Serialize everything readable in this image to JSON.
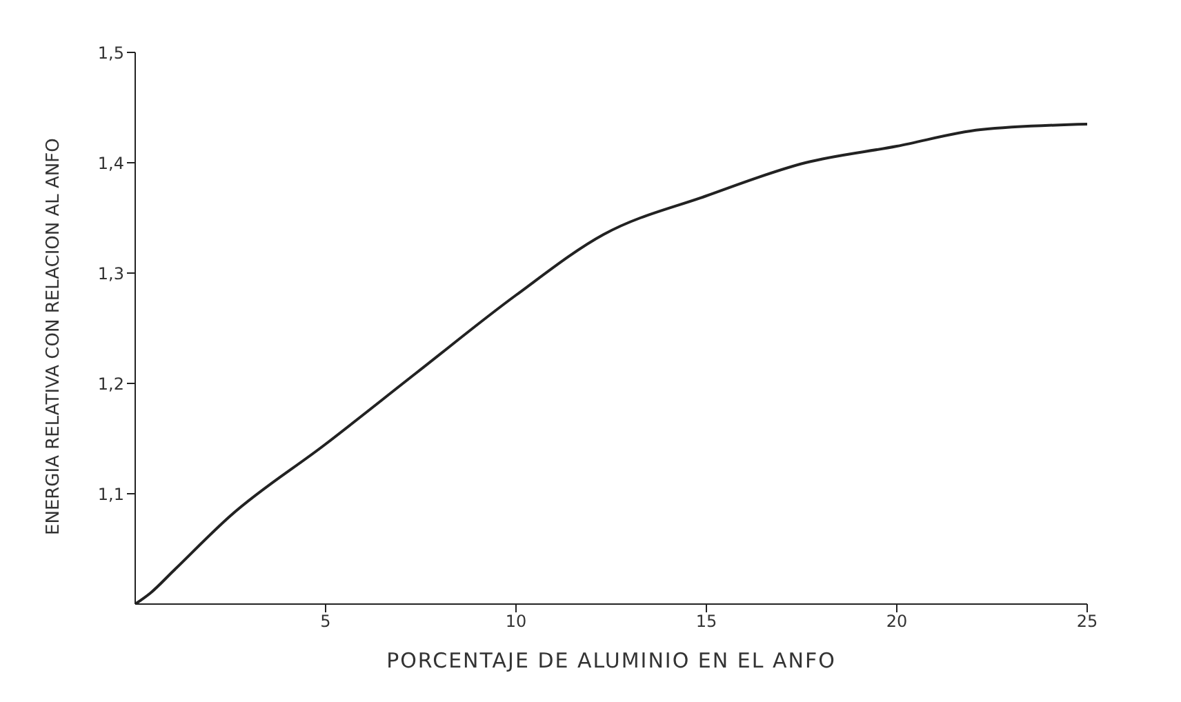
{
  "chart_data": {
    "type": "line",
    "xlabel": "PORCENTAJE DE ALUMINIO EN EL ANFO",
    "ylabel": "ENERGIA RELATIVA CON RELACION AL ANFO",
    "x": [
      0,
      0.4,
      1,
      2.5,
      5,
      7.4,
      10,
      12.3,
      15,
      17.6,
      20,
      22.2,
      25
    ],
    "series": [
      {
        "color": "#222222",
        "values": [
          1.0,
          1.01,
          1.03,
          1.08,
          1.145,
          1.21,
          1.28,
          1.335,
          1.37,
          1.4,
          1.415,
          1.43,
          1.435
        ]
      }
    ],
    "xlim": [
      0,
      25
    ],
    "xticks": [
      5,
      10,
      15,
      20,
      25
    ],
    "ylim": [
      1.0,
      1.5
    ],
    "yticks": [
      {
        "value": 1.1,
        "label": "1,1"
      },
      {
        "value": 1.2,
        "label": "1,2"
      },
      {
        "value": 1.3,
        "label": "1,3"
      },
      {
        "value": 1.4,
        "label": "1,4"
      },
      {
        "value": 1.5,
        "label": "1,5"
      }
    ],
    "grid": false,
    "legend": false,
    "marker": "none",
    "line_style": "solid"
  }
}
